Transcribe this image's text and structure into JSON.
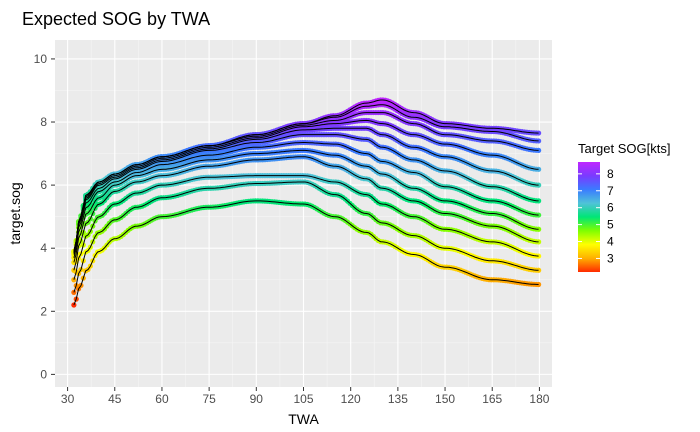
{
  "chart_data": {
    "type": "scatter",
    "title": "Expected SOG by TWA",
    "xlabel": "TWA",
    "ylabel": "target.sog",
    "xlim": [
      26,
      184
    ],
    "ylim": [
      -0.4,
      10.6
    ],
    "xticks": [
      30,
      45,
      60,
      75,
      90,
      105,
      120,
      135,
      150,
      165,
      180
    ],
    "yticks": [
      0,
      2,
      4,
      6,
      8,
      10
    ],
    "grid": true,
    "legend": {
      "title": "Target SOG[kts]",
      "placement": "right",
      "labels": [
        "8",
        "7",
        "6",
        "5",
        "4",
        "3"
      ],
      "values": [
        8,
        7,
        6,
        5,
        4,
        3
      ],
      "range": [
        2.2,
        8.7
      ]
    },
    "colors": {
      "panel": "#ebebeb",
      "grid_major": "#ffffff",
      "grid_minor": "#f5f5f5",
      "tick_text": "#4d4d4d",
      "scale": [
        "#ff2a00",
        "#ffb000",
        "#ffff00",
        "#7fff00",
        "#00e676",
        "#4fc3d8",
        "#3a7bff",
        "#7b3aff",
        "#c026ff"
      ]
    },
    "curve_key_x": [
      32,
      34,
      36,
      40,
      45,
      52,
      60,
      75,
      90,
      105,
      115,
      125,
      130,
      140,
      150,
      165,
      180
    ],
    "series": [
      {
        "values": [
          2.2,
          2.8,
          3.3,
          3.9,
          4.3,
          4.7,
          5.0,
          5.3,
          5.5,
          5.4,
          5.0,
          4.5,
          4.2,
          3.8,
          3.4,
          3.0,
          2.85
        ]
      },
      {
        "values": [
          2.6,
          3.3,
          3.9,
          4.5,
          4.9,
          5.3,
          5.6,
          5.9,
          6.05,
          6.1,
          5.7,
          5.1,
          4.8,
          4.4,
          4.0,
          3.6,
          3.3
        ]
      },
      {
        "values": [
          3.0,
          3.8,
          4.4,
          5.0,
          5.4,
          5.75,
          6.0,
          6.25,
          6.3,
          6.3,
          6.1,
          5.7,
          5.4,
          5.0,
          4.6,
          4.2,
          3.75
        ]
      },
      {
        "values": [
          3.3,
          4.2,
          4.8,
          5.4,
          5.8,
          6.1,
          6.3,
          6.6,
          6.8,
          6.9,
          6.6,
          6.2,
          5.9,
          5.5,
          5.1,
          4.7,
          4.2
        ]
      },
      {
        "values": [
          3.55,
          4.45,
          5.1,
          5.6,
          6.0,
          6.3,
          6.5,
          6.8,
          7.0,
          7.1,
          6.95,
          6.6,
          6.35,
          5.9,
          5.5,
          5.1,
          4.6
        ]
      },
      {
        "values": [
          3.7,
          4.65,
          5.3,
          5.8,
          6.1,
          6.4,
          6.65,
          6.95,
          7.2,
          7.35,
          7.3,
          7.0,
          6.75,
          6.4,
          5.95,
          5.5,
          5.05
        ]
      },
      {
        "values": [
          3.8,
          4.8,
          5.45,
          5.9,
          6.2,
          6.5,
          6.75,
          7.1,
          7.35,
          7.6,
          7.6,
          7.45,
          7.2,
          6.8,
          6.45,
          5.95,
          5.5
        ]
      },
      {
        "values": [
          3.85,
          4.9,
          5.55,
          6.0,
          6.25,
          6.55,
          6.8,
          7.15,
          7.45,
          7.75,
          7.8,
          7.8,
          7.6,
          7.2,
          6.9,
          6.45,
          6.0
        ]
      },
      {
        "values": [
          3.85,
          4.95,
          5.6,
          6.05,
          6.3,
          6.6,
          6.85,
          7.2,
          7.5,
          7.85,
          7.95,
          8.05,
          7.95,
          7.6,
          7.3,
          6.95,
          6.5
        ]
      },
      {
        "values": [
          3.9,
          5.0,
          5.65,
          6.1,
          6.35,
          6.65,
          6.9,
          7.25,
          7.55,
          7.9,
          8.05,
          8.3,
          8.3,
          7.95,
          7.6,
          7.4,
          7.1
        ]
      },
      {
        "values": [
          3.9,
          5.0,
          5.7,
          6.1,
          6.35,
          6.65,
          6.9,
          7.25,
          7.6,
          7.95,
          8.15,
          8.5,
          8.55,
          8.15,
          7.85,
          7.7,
          7.4
        ]
      },
      {
        "values": [
          3.9,
          5.0,
          5.7,
          6.1,
          6.35,
          6.65,
          6.9,
          7.25,
          7.6,
          7.95,
          8.2,
          8.6,
          8.7,
          8.3,
          7.95,
          7.8,
          7.65
        ]
      }
    ]
  }
}
